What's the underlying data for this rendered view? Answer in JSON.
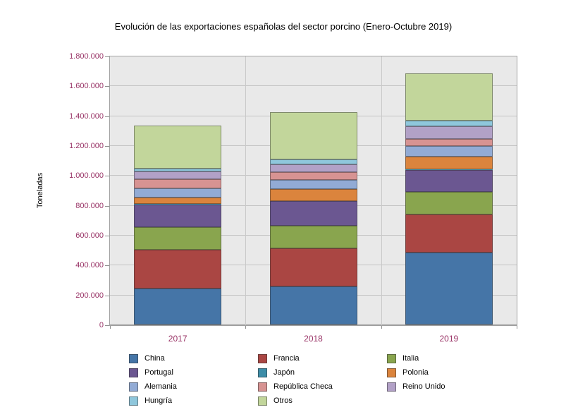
{
  "title": "Evolución de las exportaciones españolas del sector porcino (Enero-Octubre 2019)",
  "chart_data": {
    "type": "bar",
    "stacked": true,
    "title": "Evolución de las exportaciones españolas del sector porcino (Enero-Octubre 2019)",
    "xlabel": "",
    "ylabel": "Toneladas",
    "ylim": [
      0,
      1800000
    ],
    "ytick_step": 200000,
    "ytick_labels": [
      "1.800.000",
      "1.600.000",
      "1.400.000",
      "1.200.000",
      "1.000.000",
      "800.000",
      "600.000",
      "400.000",
      "200.000",
      "0"
    ],
    "grid": true,
    "legend_position": "bottom",
    "categories": [
      "2017",
      "2018",
      "2019"
    ],
    "series": [
      {
        "name": "China",
        "color": "#4575a7",
        "values": [
          243000,
          255000,
          482000
        ]
      },
      {
        "name": "Francia",
        "color": "#aa4643",
        "values": [
          259000,
          254000,
          256000
        ]
      },
      {
        "name": "Italia",
        "color": "#89a54e",
        "values": [
          152000,
          152000,
          149000
        ]
      },
      {
        "name": "Portugal",
        "color": "#6b5791",
        "values": [
          149000,
          165000,
          150000
        ]
      },
      {
        "name": "Japón",
        "color": "#3d8da8",
        "values": [
          3000,
          3000,
          3000
        ]
      },
      {
        "name": "Polonia",
        "color": "#db843d",
        "values": [
          47000,
          79000,
          86000
        ]
      },
      {
        "name": "Alemania",
        "color": "#92abd5",
        "values": [
          61000,
          60000,
          71000
        ]
      },
      {
        "name": "República Checa",
        "color": "#d79392",
        "values": [
          61000,
          52000,
          47000
        ]
      },
      {
        "name": "Reino Unido",
        "color": "#b2a1c7",
        "values": [
          50000,
          55000,
          85000
        ]
      },
      {
        "name": "Hungría",
        "color": "#8fc7dc",
        "values": [
          19000,
          32000,
          36000
        ]
      },
      {
        "name": "Otros",
        "color": "#c2d69b",
        "values": [
          287000,
          317000,
          318000
        ]
      }
    ]
  },
  "style": {
    "plot_bg": "#e9e9e9",
    "gridline_color": "#c3c3c3",
    "axis_color": "#8f8f8f",
    "tick_label_color": "#993366",
    "bar_border_color": "rgba(45,45,45,0.45)"
  },
  "legend": {
    "items": [
      "China",
      "Francia",
      "Italia",
      "Portugal",
      "Japón",
      "Polonia",
      "Alemania",
      "República Checa",
      "Reino Unido",
      "Hungría",
      "Otros"
    ]
  }
}
